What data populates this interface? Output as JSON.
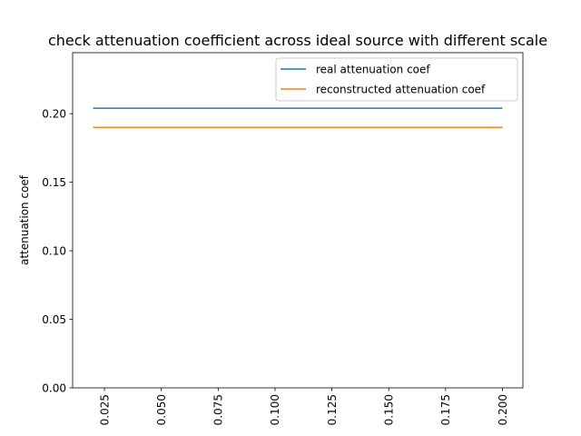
{
  "chart_data": {
    "type": "line",
    "title": "check attenuation coefficient across ideal source with different scale",
    "xlabel": "",
    "ylabel": "attenuation coef",
    "xlim": [
      0.011,
      0.209
    ],
    "ylim": [
      0.0,
      0.2445
    ],
    "x_ticks": [
      0.025,
      0.05,
      0.075,
      0.1,
      0.125,
      0.15,
      0.175,
      0.2
    ],
    "x_tick_labels": [
      "0.025",
      "0.050",
      "0.075",
      "0.100",
      "0.125",
      "0.150",
      "0.175",
      "0.200"
    ],
    "y_ticks": [
      0.0,
      0.05,
      0.1,
      0.15,
      0.2
    ],
    "y_tick_labels": [
      "0.00",
      "0.05",
      "0.10",
      "0.15",
      "0.20"
    ],
    "x_tick_rotation": 90,
    "grid": false,
    "legend_position": "top-right",
    "x": [
      0.02,
      0.2
    ],
    "series": [
      {
        "name": "real attenuation coef",
        "color": "#1f77b4",
        "values": [
          0.204,
          0.204
        ]
      },
      {
        "name": "reconstructed attenuation coef",
        "color": "#ff7f0e",
        "values": [
          0.19,
          0.19
        ]
      }
    ]
  }
}
